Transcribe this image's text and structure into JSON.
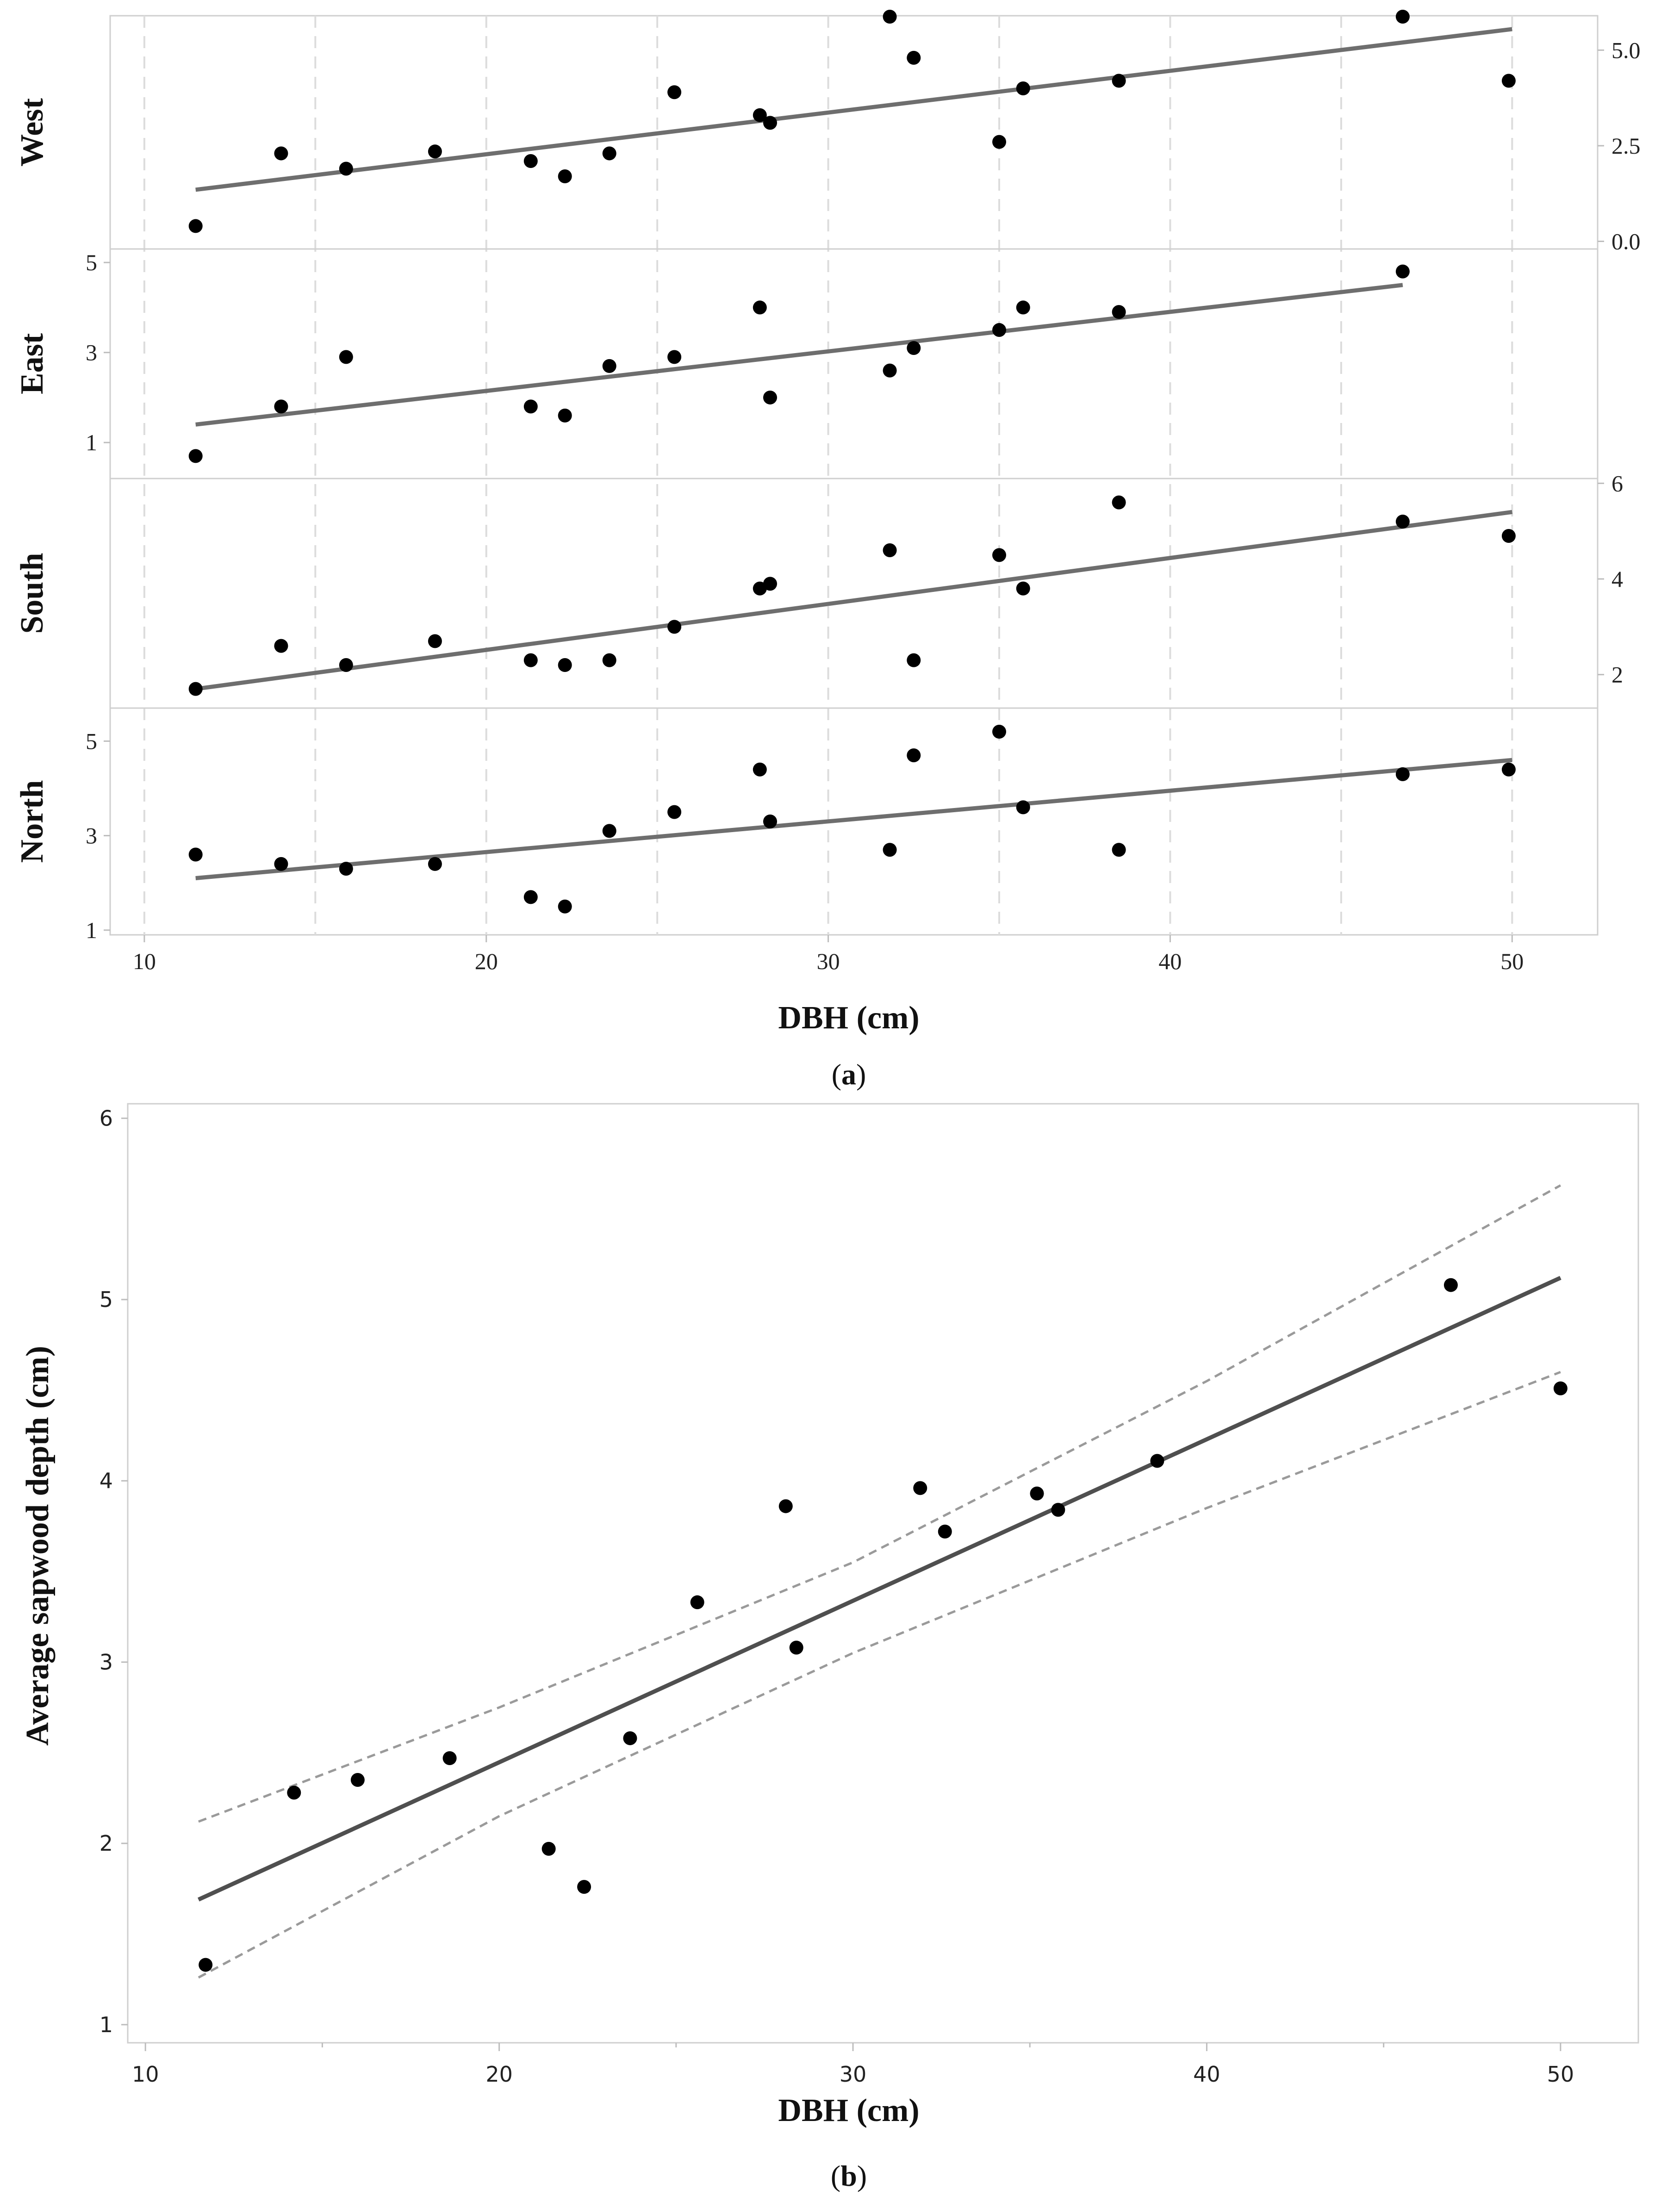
{
  "chart_data": [
    {
      "type": "scatter",
      "panel": "a",
      "caption_prefix": "(",
      "caption_letter": "a",
      "caption_suffix": ")",
      "xlabel": "DBH (cm)",
      "xlim": [
        9,
        52.5
      ],
      "xticks": [
        10,
        20,
        30,
        40,
        50
      ],
      "facets": [
        {
          "name": "West",
          "ylim": [
            -0.2,
            5.9
          ],
          "yticks": [
            0.0,
            2.5,
            5.0
          ],
          "ytick_labels": [
            "0.0",
            "2.5",
            "5.0"
          ],
          "tick_side": "right",
          "fit": {
            "x": [
              11.5,
              50
            ],
            "y": [
              1.35,
              5.55
            ]
          },
          "points": {
            "x": [
              11.5,
              14,
              15.9,
              18.5,
              21.3,
              22.3,
              23.6,
              25.5,
              28,
              28.3,
              31.8,
              32.5,
              35,
              35.7,
              38.5,
              46.8,
              49.9
            ],
            "y": [
              0.4,
              2.3,
              1.9,
              2.35,
              2.1,
              1.7,
              2.3,
              3.9,
              3.3,
              3.1,
              6.0,
              4.8,
              2.6,
              4.0,
              4.2,
              6.0,
              4.2
            ]
          }
        },
        {
          "name": "East",
          "ylim": [
            0.2,
            5.3
          ],
          "yticks": [
            1,
            3,
            5
          ],
          "ytick_labels": [
            "1",
            "3",
            "5"
          ],
          "tick_side": "left",
          "fit": {
            "x": [
              11.5,
              46.8
            ],
            "y": [
              1.4,
              4.5
            ]
          },
          "points": {
            "x": [
              11.5,
              14,
              15.9,
              21.3,
              22.3,
              23.6,
              25.5,
              28,
              28.3,
              31.8,
              32.5,
              35,
              35.7,
              38.5,
              46.8
            ],
            "y": [
              0.7,
              1.8,
              2.9,
              1.8,
              1.6,
              2.7,
              2.9,
              4.0,
              2.0,
              2.6,
              3.1,
              3.5,
              4.0,
              3.9,
              4.8
            ]
          }
        },
        {
          "name": "South",
          "ylim": [
            1.3,
            6.1
          ],
          "yticks": [
            2,
            4,
            6
          ],
          "ytick_labels": [
            "2",
            "4",
            "6"
          ],
          "tick_side": "right",
          "fit": {
            "x": [
              11.5,
              50
            ],
            "y": [
              1.7,
              5.4
            ]
          },
          "points": {
            "x": [
              11.5,
              14,
              15.9,
              18.5,
              21.3,
              22.3,
              23.6,
              25.5,
              28,
              28.3,
              31.8,
              32.5,
              35,
              35.7,
              38.5,
              46.8,
              49.9
            ],
            "y": [
              1.7,
              2.6,
              2.2,
              2.7,
              2.3,
              2.2,
              2.3,
              3.0,
              3.8,
              3.9,
              4.6,
              2.3,
              4.5,
              3.8,
              5.6,
              5.2,
              4.9
            ]
          }
        },
        {
          "name": "North",
          "ylim": [
            0.9,
            5.7
          ],
          "yticks": [
            1,
            3,
            5
          ],
          "ytick_labels": [
            "1",
            "3",
            "5"
          ],
          "tick_side": "left",
          "fit": {
            "x": [
              11.5,
              50
            ],
            "y": [
              2.1,
              4.6
            ]
          },
          "points": {
            "x": [
              11.5,
              14,
              15.9,
              18.5,
              21.3,
              22.3,
              23.6,
              25.5,
              28,
              28.3,
              31.8,
              32.5,
              35,
              35.7,
              38.5,
              46.8,
              49.9
            ],
            "y": [
              2.6,
              2.4,
              2.3,
              2.4,
              1.7,
              1.5,
              3.1,
              3.5,
              4.4,
              3.3,
              2.7,
              4.7,
              5.2,
              3.6,
              2.7,
              4.3,
              4.4
            ]
          }
        }
      ]
    },
    {
      "type": "scatter",
      "panel": "b",
      "caption_prefix": "(",
      "caption_letter": "b",
      "caption_suffix": ")",
      "xlabel": "DBH (cm)",
      "ylabel": "Average sapwood depth (cm)",
      "xlim": [
        9.5,
        52.2
      ],
      "ylim": [
        0.9,
        6.08
      ],
      "xticks": [
        10,
        20,
        30,
        40,
        50
      ],
      "yticks": [
        1,
        2,
        3,
        4,
        5,
        6
      ],
      "fit": {
        "x": [
          11.5,
          50
        ],
        "y": [
          1.69,
          5.12
        ]
      },
      "ci_upper": {
        "x": [
          11.5,
          20,
          30,
          40,
          50
        ],
        "y": [
          2.12,
          2.75,
          3.55,
          4.55,
          5.63
        ]
      },
      "ci_lower": {
        "x": [
          11.5,
          20,
          30,
          40,
          50
        ],
        "y": [
          1.26,
          2.15,
          3.05,
          3.85,
          4.6
        ]
      },
      "points": {
        "x": [
          11.7,
          14.2,
          16,
          18.6,
          21.4,
          22.4,
          23.7,
          25.6,
          28.1,
          28.4,
          31.9,
          32.6,
          35.2,
          35.8,
          38.6,
          46.9,
          50
        ],
        "y": [
          1.33,
          2.28,
          2.35,
          2.47,
          1.97,
          1.76,
          2.58,
          3.33,
          3.86,
          3.08,
          3.96,
          3.72,
          3.93,
          3.84,
          4.11,
          5.08,
          4.51
        ]
      }
    }
  ]
}
